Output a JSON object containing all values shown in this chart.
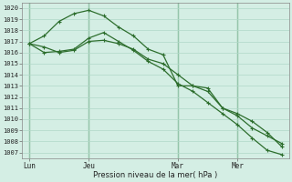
{
  "background_color": "#d4eee4",
  "grid_color": "#b0d8c8",
  "line_color": "#2d6e2d",
  "ylabel": "Pression niveau de la mer( hPa )",
  "ylim": [
    1006.5,
    1020.5
  ],
  "yticks": [
    1007,
    1008,
    1009,
    1010,
    1011,
    1012,
    1013,
    1014,
    1015,
    1016,
    1017,
    1018,
    1019,
    1020
  ],
  "x_tick_labels": [
    "Lun",
    "Jeu",
    "Mar",
    "Mer"
  ],
  "x_tick_positions": [
    0,
    4,
    10,
    14
  ],
  "xlim": [
    -0.5,
    17.5
  ],
  "series": [
    {
      "x": [
        0,
        1,
        2,
        3,
        4,
        5,
        6,
        7,
        8,
        9,
        10,
        11,
        12,
        13,
        14,
        15,
        16,
        17
      ],
      "y": [
        1016.8,
        1016.5,
        1016.0,
        1016.2,
        1017.0,
        1017.1,
        1016.8,
        1016.3,
        1015.4,
        1015.0,
        1014.0,
        1013.0,
        1012.8,
        1011.0,
        1010.5,
        1009.8,
        1008.8,
        1007.5
      ]
    },
    {
      "x": [
        0,
        1,
        2,
        3,
        4,
        5,
        6,
        7,
        8,
        9,
        10,
        11,
        12,
        13,
        14,
        15,
        16,
        17
      ],
      "y": [
        1016.8,
        1017.5,
        1018.8,
        1019.5,
        1019.8,
        1019.3,
        1018.3,
        1017.5,
        1016.3,
        1015.8,
        1013.0,
        1013.0,
        1012.5,
        1011.0,
        1010.3,
        1009.2,
        1008.5,
        1007.8
      ]
    },
    {
      "x": [
        0,
        1,
        2,
        3,
        4,
        5,
        6,
        7,
        8,
        9,
        10,
        11,
        12,
        13,
        14,
        15,
        16,
        17
      ],
      "y": [
        1016.8,
        1016.0,
        1016.1,
        1016.3,
        1017.3,
        1017.8,
        1017.0,
        1016.2,
        1015.2,
        1014.5,
        1013.2,
        1012.5,
        1011.5,
        1010.5,
        1009.5,
        1008.3,
        1007.2,
        1006.8
      ]
    }
  ]
}
